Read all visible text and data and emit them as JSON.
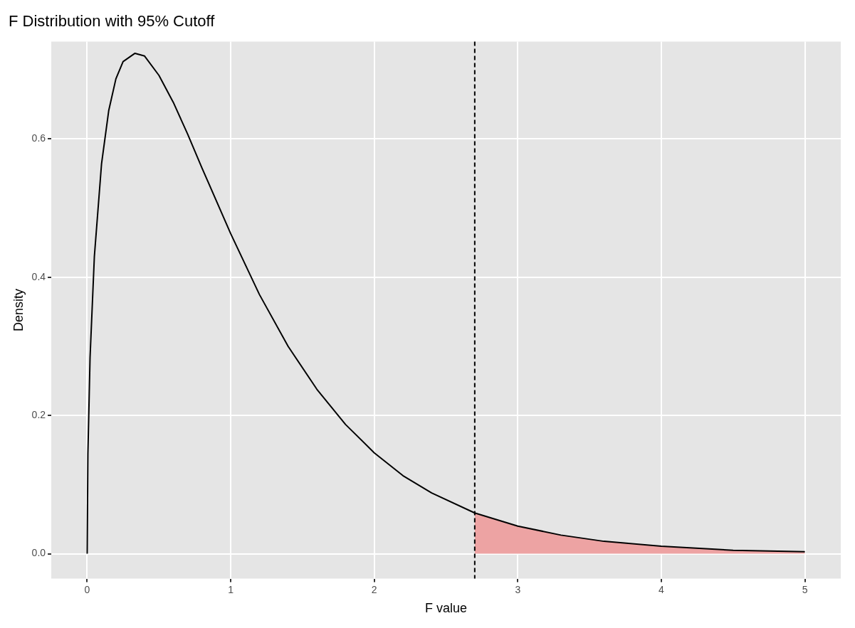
{
  "chart_data": {
    "type": "line",
    "title": "F Distribution with 95% Cutoff",
    "xlabel": "F value",
    "ylabel": "Density",
    "xlim": [
      -0.25,
      5.25
    ],
    "xticks": [
      0,
      1,
      2,
      3,
      4,
      5
    ],
    "ylim": [
      -0.036,
      0.741
    ],
    "yticks": [
      {
        "value": 0,
        "label": "0.0"
      },
      0.2,
      0.4,
      0.6
    ],
    "grid": true,
    "legend": false,
    "marker": "none",
    "series": [
      {
        "type": "area",
        "color": "#eda3a3",
        "x": [
          2.7,
          3.0,
          3.3,
          3.6,
          4.0,
          4.5,
          5.0
        ],
        "values": [
          0.059,
          0.04,
          0.027,
          0.018,
          0.011,
          0.005,
          0.003
        ]
      },
      {
        "color": "#000000",
        "line_style": "solid",
        "x": [
          0,
          0.005,
          0.02,
          0.05,
          0.1,
          0.15,
          0.2,
          0.25,
          0.333,
          0.4,
          0.5,
          0.6,
          0.7,
          0.8,
          1.0,
          1.2,
          1.4,
          1.6,
          1.8,
          2.0,
          2.2,
          2.4,
          2.7,
          3.0,
          3.3,
          3.6,
          4.0,
          4.5,
          5.0
        ],
        "values": [
          0,
          0.145,
          0.284,
          0.43,
          0.564,
          0.641,
          0.687,
          0.712,
          0.724,
          0.72,
          0.692,
          0.653,
          0.607,
          0.558,
          0.463,
          0.375,
          0.3,
          0.238,
          0.187,
          0.146,
          0.113,
          0.088,
          0.059,
          0.04,
          0.027,
          0.018,
          0.011,
          0.005,
          0.003
        ]
      }
    ],
    "ref_lines": [
      {
        "axis": "x",
        "value": 2.7,
        "color": "#000000",
        "line_style": "dashed"
      }
    ]
  }
}
